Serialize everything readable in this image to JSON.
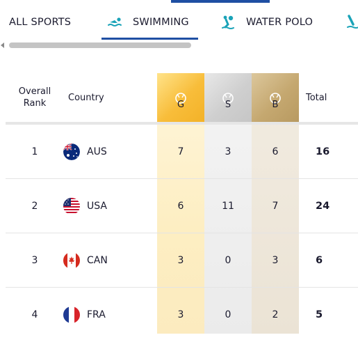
{
  "tabs": [
    {
      "label": "ALL SPORTS",
      "icon": null,
      "active": false
    },
    {
      "label": "SWIMMING",
      "icon": "swimming-icon",
      "active": true
    },
    {
      "label": "WATER POLO",
      "icon": "water-polo-icon",
      "active": false
    },
    {
      "label": "",
      "icon": "diving-icon",
      "active": false
    }
  ],
  "table": {
    "headers": {
      "rank": "Overall Rank",
      "country": "Country",
      "gold": "G",
      "silver": "S",
      "bronze": "B",
      "total": "Total"
    },
    "rows": [
      {
        "rank": "1",
        "code": "AUS",
        "flag": "australia-flag-icon",
        "g": "7",
        "s": "3",
        "b": "6",
        "total": "16"
      },
      {
        "rank": "2",
        "code": "USA",
        "flag": "usa-flag-icon",
        "g": "6",
        "s": "11",
        "b": "7",
        "total": "24"
      },
      {
        "rank": "3",
        "code": "CAN",
        "flag": "canada-flag-icon",
        "g": "3",
        "s": "0",
        "b": "3",
        "total": "6"
      },
      {
        "rank": "4",
        "code": "FRA",
        "flag": "france-flag-icon",
        "g": "3",
        "s": "0",
        "b": "2",
        "total": "5"
      }
    ]
  },
  "colors": {
    "accent": "#1f4fa3",
    "icon_teal": "#1aa3b8",
    "gold": "#f8bd3a",
    "silver": "#cfcfcf",
    "bronze": "#c5a870"
  }
}
